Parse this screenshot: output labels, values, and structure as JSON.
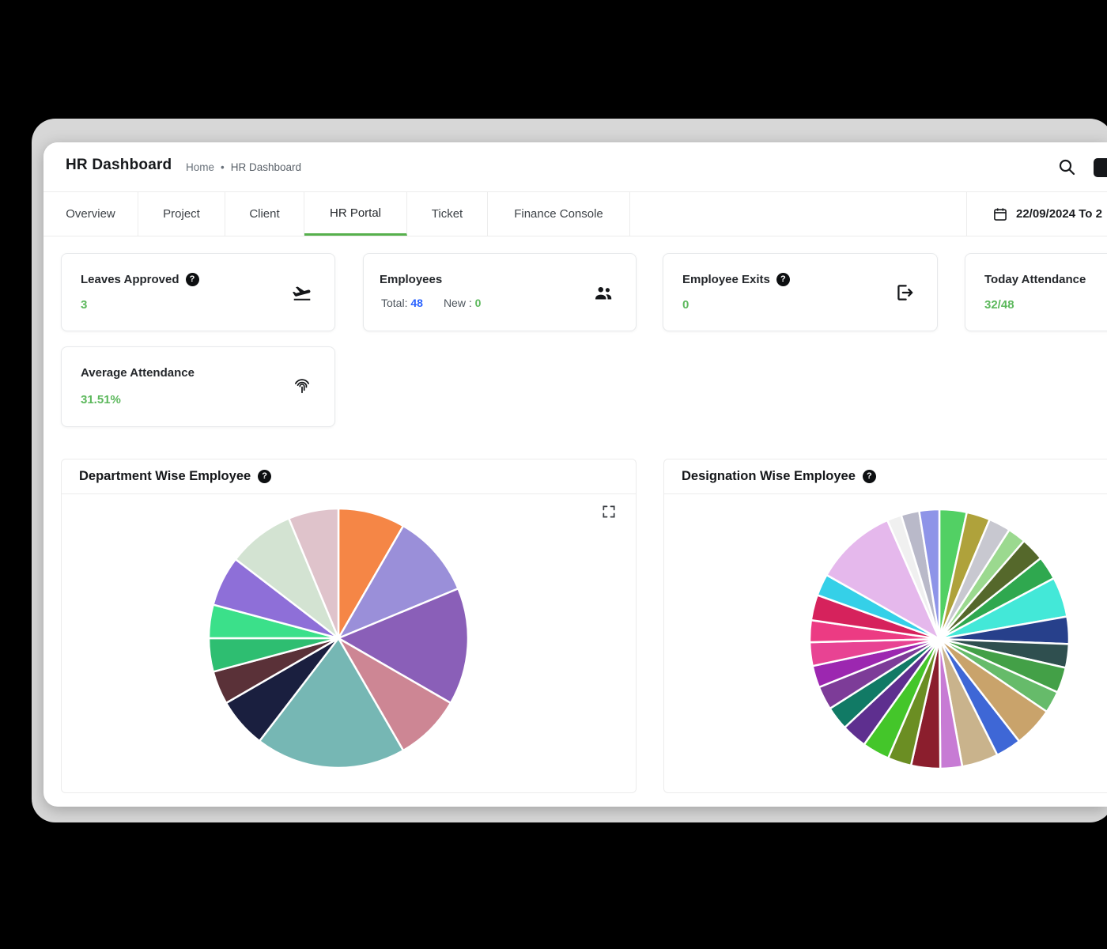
{
  "header": {
    "title": "HR Dashboard",
    "breadcrumb": {
      "home": "Home",
      "separator": "•",
      "current": "HR Dashboard"
    }
  },
  "tabs": {
    "items": [
      {
        "label": "Overview",
        "active": false
      },
      {
        "label": "Project",
        "active": false
      },
      {
        "label": "Client",
        "active": false
      },
      {
        "label": "HR Portal",
        "active": true
      },
      {
        "label": "Ticket",
        "active": false
      },
      {
        "label": "Finance Console",
        "active": false
      }
    ],
    "date_range": "22/09/2024 To 2"
  },
  "stat_cards": {
    "leaves_approved": {
      "title": "Leaves Approved",
      "value": "3"
    },
    "employees": {
      "title": "Employees",
      "total_label": "Total:",
      "total_value": "48",
      "new_label": "New :",
      "new_value": "0"
    },
    "employee_exits": {
      "title": "Employee Exits",
      "value": "0"
    },
    "today_attendance": {
      "title": "Today Attendance",
      "value": "32/48"
    },
    "average_attendance": {
      "title": "Average Attendance",
      "value": "31.51%"
    }
  },
  "charts": {
    "department_title": "Department Wise Employee",
    "designation_title": "Designation Wise Employee"
  },
  "chart_data": [
    {
      "type": "pie",
      "title": "Department Wise Employee",
      "legend": "none",
      "start_angle_deg": -90,
      "direction": "clockwise",
      "slices": [
        {
          "value": 4,
          "color": "#F58646"
        },
        {
          "value": 5,
          "color": "#9A8FD9"
        },
        {
          "value": 7,
          "color": "#8A5FB8"
        },
        {
          "value": 4,
          "color": "#CD8694"
        },
        {
          "value": 9,
          "color": "#76B7B4"
        },
        {
          "value": 3,
          "color": "#1A1F3F"
        },
        {
          "value": 2,
          "color": "#5A3138"
        },
        {
          "value": 2,
          "color": "#2EBE71"
        },
        {
          "value": 2,
          "color": "#3BE08A"
        },
        {
          "value": 3,
          "color": "#8E6FD8"
        },
        {
          "value": 4,
          "color": "#D3E3D2"
        },
        {
          "value": 3,
          "color": "#DFC3CB"
        }
      ]
    },
    {
      "type": "pie",
      "title": "Designation Wise Employee",
      "legend": "none",
      "start_angle_deg": -90,
      "direction": "clockwise",
      "slices": [
        {
          "value": 1.5,
          "color": "#52D064"
        },
        {
          "value": 1.3,
          "color": "#AFA23B"
        },
        {
          "value": 1.2,
          "color": "#C8C8D0"
        },
        {
          "value": 1.0,
          "color": "#9BD98F"
        },
        {
          "value": 1.3,
          "color": "#55682B"
        },
        {
          "value": 1.3,
          "color": "#2FA84F"
        },
        {
          "value": 2.2,
          "color": "#43E8D8"
        },
        {
          "value": 1.5,
          "color": "#27408B"
        },
        {
          "value": 1.3,
          "color": "#2F4F4F"
        },
        {
          "value": 1.4,
          "color": "#43A047"
        },
        {
          "value": 1.2,
          "color": "#66BB6A"
        },
        {
          "value": 2.2,
          "color": "#C9A36B"
        },
        {
          "value": 1.4,
          "color": "#3E67D6"
        },
        {
          "value": 2.0,
          "color": "#C9B38C"
        },
        {
          "value": 1.2,
          "color": "#C77BD4"
        },
        {
          "value": 1.6,
          "color": "#8B1E2D"
        },
        {
          "value": 1.3,
          "color": "#6B8E23"
        },
        {
          "value": 1.5,
          "color": "#44C62A"
        },
        {
          "value": 1.4,
          "color": "#5E2F8F"
        },
        {
          "value": 1.3,
          "color": "#117A65"
        },
        {
          "value": 1.3,
          "color": "#7D3C98"
        },
        {
          "value": 1.2,
          "color": "#9C27B0"
        },
        {
          "value": 1.3,
          "color": "#E84393"
        },
        {
          "value": 1.2,
          "color": "#EC3B83"
        },
        {
          "value": 1.4,
          "color": "#D6225C"
        },
        {
          "value": 1.2,
          "color": "#35D0E8"
        },
        {
          "value": 4.5,
          "color": "#E5B8EC"
        },
        {
          "value": 0.8,
          "color": "#F0F0F0"
        },
        {
          "value": 1.0,
          "color": "#B9B9C9"
        },
        {
          "value": 1.1,
          "color": "#8E94E8"
        }
      ]
    }
  ],
  "colors": {
    "accent_green": "#56b04c",
    "value_green": "#5cb85c",
    "link_blue": "#2962ff",
    "frame_gray": "#d7d7d7",
    "page_black": "#000000"
  },
  "icons": {
    "help_glyph": "?"
  }
}
